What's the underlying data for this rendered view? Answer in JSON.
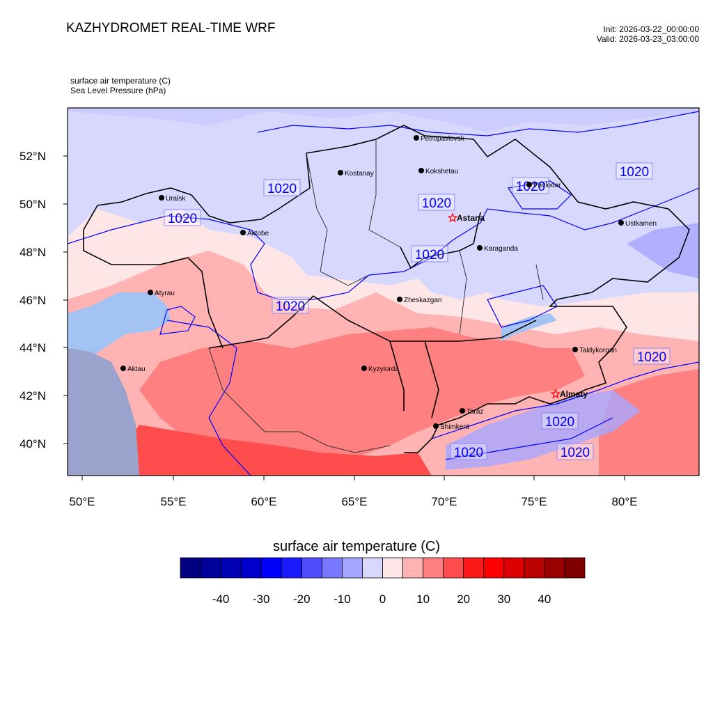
{
  "header": {
    "title": "KAZHYDROMET REAL-TIME WRF",
    "init": "Init: 2026-03-22_00:00:00",
    "valid": "Valid: 2026-03-23_03:00:00"
  },
  "variables": {
    "temperature": "surface air temperature   (C)",
    "pressure": "Sea Level Pressure   (hPa)"
  },
  "axes": {
    "lat_labels": [
      "52°N",
      "50°N",
      "48°N",
      "46°N",
      "44°N",
      "42°N",
      "40°N"
    ],
    "lon_labels": [
      "50°E",
      "55°E",
      "60°E",
      "65°E",
      "70°E",
      "75°E",
      "80°E"
    ]
  },
  "cities": [
    {
      "name": "Petropavlovsk",
      "marker": "dot"
    },
    {
      "name": "Kostanay",
      "marker": "dot"
    },
    {
      "name": "Kokshetau",
      "marker": "dot"
    },
    {
      "name": "Pavlodar",
      "marker": "dot"
    },
    {
      "name": "Uralsk",
      "marker": "dot"
    },
    {
      "name": "Aktobe",
      "marker": "dot"
    },
    {
      "name": "Astana",
      "marker": "star"
    },
    {
      "name": "Ustkamen",
      "marker": "dot"
    },
    {
      "name": "Karaganda",
      "marker": "dot"
    },
    {
      "name": "Atyrau",
      "marker": "dot"
    },
    {
      "name": "Zheskazgan",
      "marker": "dot"
    },
    {
      "name": "Taldykorgan",
      "marker": "dot"
    },
    {
      "name": "Aktau",
      "marker": "dot"
    },
    {
      "name": "Kyzylorda",
      "marker": "dot"
    },
    {
      "name": "Almaty",
      "marker": "star"
    },
    {
      "name": "Taraz",
      "marker": "dot"
    },
    {
      "name": "Shimkent",
      "marker": "dot"
    }
  ],
  "isobar_label": "1020",
  "colorbar": {
    "title": "surface air temperature  (C)",
    "colors": [
      "#000080",
      "#00009a",
      "#0000b4",
      "#0000cd",
      "#0000ff",
      "#1a1aff",
      "#4d4dff",
      "#7777ff",
      "#a6a6ff",
      "#d8d8ff",
      "#ffe6e6",
      "#ffb3b3",
      "#ff8080",
      "#ff4d4d",
      "#ff1a1a",
      "#ff0000",
      "#dd0000",
      "#bb0000",
      "#990000",
      "#800000"
    ],
    "labels": [
      "-40",
      "-30",
      "-20",
      "-10",
      "0",
      "10",
      "20",
      "30",
      "40"
    ]
  }
}
